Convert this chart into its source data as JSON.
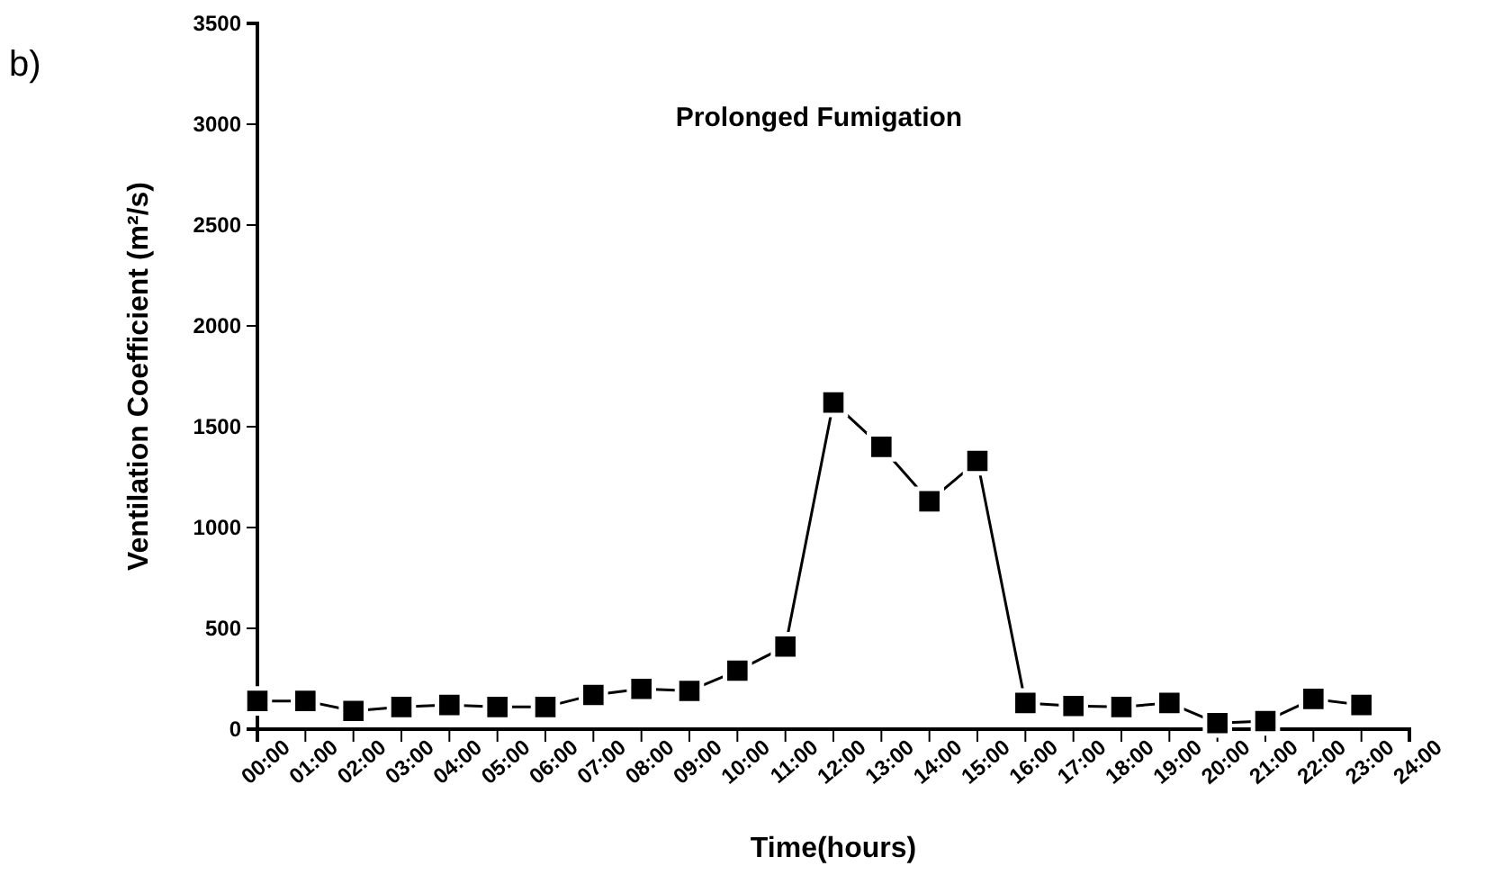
{
  "chart_data": {
    "type": "line",
    "title": "Prolonged Fumigation",
    "xlabel": "Time(hours)",
    "ylabel": "Ventilation Coefficient (m²/s)",
    "annotations": [
      "b)"
    ],
    "x": [
      0,
      1,
      2,
      3,
      4,
      5,
      6,
      7,
      8,
      9,
      10,
      11,
      12,
      13,
      14,
      15,
      16,
      17,
      18,
      19,
      20,
      21,
      22,
      23
    ],
    "series": [
      {
        "color": "#000000",
        "values": [
          140,
          140,
          90,
          110,
          120,
          110,
          110,
          170,
          200,
          190,
          290,
          410,
          1620,
          1400,
          1130,
          1330,
          130,
          115,
          110,
          130,
          30,
          40,
          150,
          120
        ]
      }
    ],
    "xlim": [
      0,
      24
    ],
    "xticks": [
      {
        "value": 0,
        "label": "00:00"
      },
      {
        "value": 1,
        "label": "01:00"
      },
      {
        "value": 2,
        "label": "02:00"
      },
      {
        "value": 3,
        "label": "03:00"
      },
      {
        "value": 4,
        "label": "04:00"
      },
      {
        "value": 5,
        "label": "05:00"
      },
      {
        "value": 6,
        "label": "06:00"
      },
      {
        "value": 7,
        "label": "07:00"
      },
      {
        "value": 8,
        "label": "08:00"
      },
      {
        "value": 9,
        "label": "09:00"
      },
      {
        "value": 10,
        "label": "10:00"
      },
      {
        "value": 11,
        "label": "11:00"
      },
      {
        "value": 12,
        "label": "12:00"
      },
      {
        "value": 13,
        "label": "13:00"
      },
      {
        "value": 14,
        "label": "14:00"
      },
      {
        "value": 15,
        "label": "15:00"
      },
      {
        "value": 16,
        "label": "16:00"
      },
      {
        "value": 17,
        "label": "17:00"
      },
      {
        "value": 18,
        "label": "18:00"
      },
      {
        "value": 19,
        "label": "19:00"
      },
      {
        "value": 20,
        "label": "20:00"
      },
      {
        "value": 21,
        "label": "21:00"
      },
      {
        "value": 22,
        "label": "22:00"
      },
      {
        "value": 23,
        "label": "23:00"
      },
      {
        "value": 24,
        "label": "24:00"
      }
    ],
    "ylim": [
      0,
      3500
    ],
    "yticks": [
      0,
      500,
      1000,
      1500,
      2000,
      2500,
      3000,
      3500
    ],
    "grid": false,
    "marker": "square",
    "line_style": "solid"
  }
}
